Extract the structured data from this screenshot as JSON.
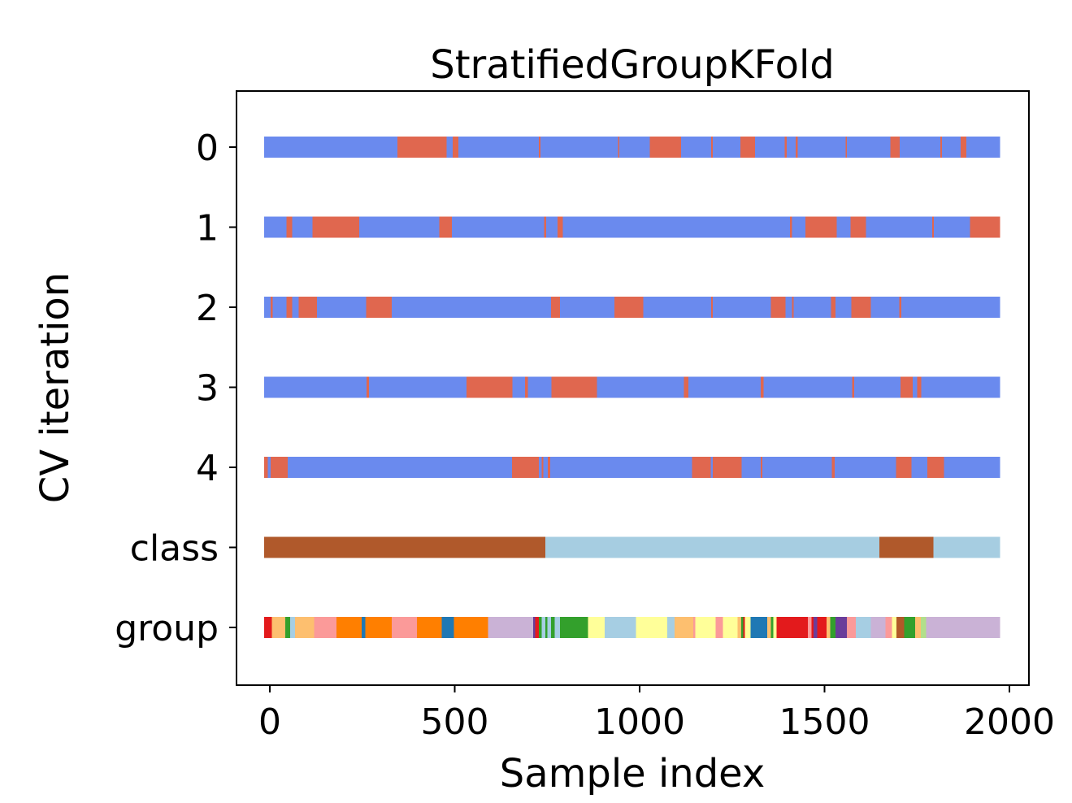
{
  "chart_data": {
    "type": "bar",
    "title": "StratifiedGroupKFold",
    "xlabel": "Sample index",
    "ylabel": "CV iteration",
    "xlim": [
      -20,
      2030
    ],
    "xticks": [
      0,
      500,
      1000,
      1500,
      2000
    ],
    "x_range": [
      -15,
      1975
    ],
    "grid": false,
    "rows": [
      {
        "label": "0",
        "kind": "split",
        "test": [
          [
            345,
            478
          ],
          [
            495,
            510
          ],
          [
            728,
            732
          ],
          [
            942,
            945
          ],
          [
            1027,
            1112
          ],
          [
            1193,
            1198
          ],
          [
            1273,
            1312
          ],
          [
            1392,
            1398
          ],
          [
            1422,
            1427
          ],
          [
            1557,
            1560
          ],
          [
            1678,
            1703
          ],
          [
            1813,
            1818
          ],
          [
            1868,
            1883
          ]
        ]
      },
      {
        "label": "1",
        "kind": "split",
        "test": [
          [
            45,
            60
          ],
          [
            115,
            242
          ],
          [
            458,
            492
          ],
          [
            742,
            747
          ],
          [
            778,
            792
          ],
          [
            1407,
            1412
          ],
          [
            1448,
            1533
          ],
          [
            1570,
            1612
          ],
          [
            1791,
            1796
          ],
          [
            1893,
            1975
          ]
        ]
      },
      {
        "label": "2",
        "kind": "split",
        "test": [
          [
            2,
            8
          ],
          [
            45,
            60
          ],
          [
            78,
            128
          ],
          [
            260,
            330
          ],
          [
            760,
            785
          ],
          [
            932,
            1010
          ],
          [
            1193,
            1198
          ],
          [
            1355,
            1395
          ],
          [
            1412,
            1417
          ],
          [
            1518,
            1530
          ],
          [
            1572,
            1625
          ],
          [
            1702,
            1708
          ]
        ]
      },
      {
        "label": "3",
        "kind": "split",
        "test": [
          [
            262,
            268
          ],
          [
            532,
            656
          ],
          [
            690,
            698
          ],
          [
            762,
            885
          ],
          [
            1120,
            1132
          ],
          [
            1327,
            1335
          ],
          [
            1575,
            1580
          ],
          [
            1705,
            1738
          ],
          [
            1750,
            1762
          ]
        ]
      },
      {
        "label": "4",
        "kind": "split",
        "test": [
          [
            -15,
            -5
          ],
          [
            2,
            48
          ],
          [
            655,
            728
          ],
          [
            735,
            740
          ],
          [
            752,
            758
          ],
          [
            1142,
            1192
          ],
          [
            1198,
            1276
          ],
          [
            1327,
            1332
          ],
          [
            1520,
            1527
          ],
          [
            1693,
            1735
          ],
          [
            1778,
            1823
          ]
        ]
      },
      {
        "label": "class",
        "kind": "class",
        "segments": [
          [
            -15,
            745,
            0
          ],
          [
            745,
            1648,
            1
          ],
          [
            1648,
            1795,
            0
          ],
          [
            1795,
            1975,
            1
          ]
        ]
      },
      {
        "label": "group",
        "kind": "group",
        "segments": [
          [
            -15,
            5,
            "#e31a1c"
          ],
          [
            5,
            42,
            "#fdbf6f"
          ],
          [
            42,
            55,
            "#33a02c"
          ],
          [
            55,
            68,
            "#a6cee3"
          ],
          [
            68,
            120,
            "#fdbf6f"
          ],
          [
            120,
            180,
            "#fb9a99"
          ],
          [
            180,
            248,
            "#ff7f00"
          ],
          [
            248,
            258,
            "#1f78b4"
          ],
          [
            258,
            330,
            "#ff7f00"
          ],
          [
            330,
            398,
            "#fb9a99"
          ],
          [
            398,
            465,
            "#ff7f00"
          ],
          [
            465,
            498,
            "#1f78b4"
          ],
          [
            498,
            590,
            "#ff7f00"
          ],
          [
            590,
            712,
            "#cab2d6"
          ],
          [
            712,
            718,
            "#6a3d9a"
          ],
          [
            718,
            728,
            "#e31a1c"
          ],
          [
            728,
            735,
            "#33a02c"
          ],
          [
            735,
            745,
            "#a6cee3"
          ],
          [
            745,
            750,
            "#33a02c"
          ],
          [
            750,
            760,
            "#a6cee3"
          ],
          [
            760,
            770,
            "#33a02c"
          ],
          [
            770,
            785,
            "#a6cee3"
          ],
          [
            785,
            860,
            "#33a02c"
          ],
          [
            860,
            905,
            "#ffff99"
          ],
          [
            905,
            990,
            "#a6cee3"
          ],
          [
            990,
            1075,
            "#ffff99"
          ],
          [
            1075,
            1095,
            "#a6cee3"
          ],
          [
            1095,
            1145,
            "#fdbf6f"
          ],
          [
            1145,
            1150,
            "#fb9a99"
          ],
          [
            1150,
            1205,
            "#ffff99"
          ],
          [
            1205,
            1225,
            "#fb9a99"
          ],
          [
            1225,
            1265,
            "#ffff99"
          ],
          [
            1265,
            1275,
            "#fdbf6f"
          ],
          [
            1275,
            1280,
            "#33a02c"
          ],
          [
            1280,
            1285,
            "#e31a1c"
          ],
          [
            1285,
            1300,
            "#ffff99"
          ],
          [
            1300,
            1345,
            "#1f78b4"
          ],
          [
            1345,
            1355,
            "#fdbf6f"
          ],
          [
            1355,
            1362,
            "#33a02c"
          ],
          [
            1362,
            1370,
            "#ffff99"
          ],
          [
            1370,
            1455,
            "#e31a1c"
          ],
          [
            1455,
            1465,
            "#fb9a99"
          ],
          [
            1465,
            1470,
            "#e31a1c"
          ],
          [
            1470,
            1480,
            "#6a3d9a"
          ],
          [
            1480,
            1505,
            "#e31a1c"
          ],
          [
            1505,
            1515,
            "#fdbf6f"
          ],
          [
            1515,
            1530,
            "#33a02c"
          ],
          [
            1530,
            1560,
            "#6a3d9a"
          ],
          [
            1560,
            1585,
            "#fb9a99"
          ],
          [
            1585,
            1625,
            "#a6cee3"
          ],
          [
            1625,
            1665,
            "#cab2d6"
          ],
          [
            1665,
            1682,
            "#fb9a99"
          ],
          [
            1682,
            1695,
            "#ffff99"
          ],
          [
            1695,
            1715,
            "#b15928"
          ],
          [
            1715,
            1745,
            "#33a02c"
          ],
          [
            1745,
            1760,
            "#fdbf6f"
          ],
          [
            1760,
            1775,
            "#b2df8a"
          ],
          [
            1775,
            1975,
            "#cab2d6"
          ]
        ]
      }
    ],
    "colors": {
      "train": "#6a8aee",
      "test": "#e0674f",
      "class_0": "#b0592b",
      "class_1": "#a6cde1"
    }
  }
}
